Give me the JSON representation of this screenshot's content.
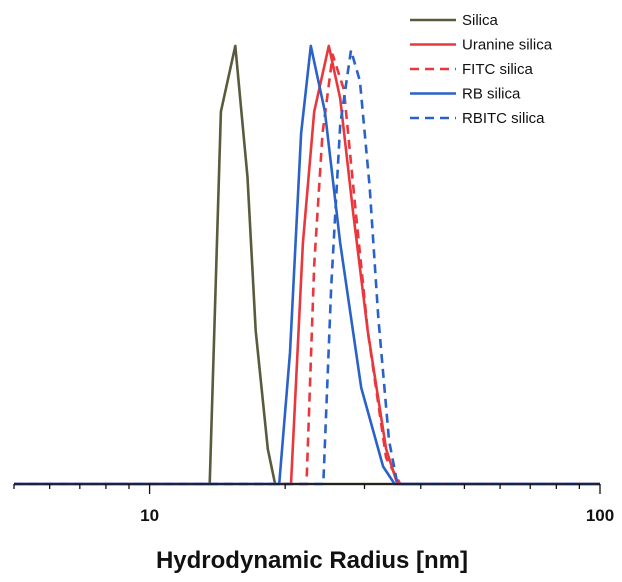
{
  "chart_data": {
    "type": "line",
    "title": "",
    "xlabel": "Hydrodynamic Radius [nm]",
    "ylabel": "",
    "x_scale": "log",
    "xlim": [
      5,
      100
    ],
    "ylim": [
      0,
      1.05
    ],
    "x_ticks": [
      {
        "value": 10,
        "label": "10"
      },
      {
        "value": 100,
        "label": "100"
      }
    ],
    "legend_position": "top-right",
    "grid": false,
    "series": [
      {
        "name": "Silica",
        "color": "#5a5a3c",
        "dash": "solid",
        "points": [
          [
            5,
            0
          ],
          [
            13.6,
            0
          ],
          [
            14.4,
            0.85
          ],
          [
            15.5,
            1.0
          ],
          [
            16.5,
            0.7
          ],
          [
            17.2,
            0.35
          ],
          [
            18.3,
            0.08
          ],
          [
            19.0,
            0
          ],
          [
            100,
            0
          ]
        ]
      },
      {
        "name": "Uranine silica",
        "color": "#e8383d",
        "dash": "solid",
        "points": [
          [
            5,
            0
          ],
          [
            20.6,
            0
          ],
          [
            21.9,
            0.55
          ],
          [
            23.2,
            0.85
          ],
          [
            25.0,
            1.0
          ],
          [
            26.5,
            0.88
          ],
          [
            28.3,
            0.62
          ],
          [
            30.5,
            0.35
          ],
          [
            33.5,
            0.08
          ],
          [
            35.5,
            0
          ],
          [
            100,
            0
          ]
        ]
      },
      {
        "name": "FITC silica",
        "color": "#e8383d",
        "dash": "dashed",
        "points": [
          [
            5,
            0
          ],
          [
            22.3,
            0
          ],
          [
            23.2,
            0.5
          ],
          [
            24.2,
            0.8
          ],
          [
            25.5,
            0.98
          ],
          [
            27.0,
            0.9
          ],
          [
            28.5,
            0.65
          ],
          [
            30.5,
            0.35
          ],
          [
            33.5,
            0.06
          ],
          [
            36.0,
            0
          ],
          [
            100,
            0
          ]
        ]
      },
      {
        "name": "RB silica",
        "color": "#2a62c9",
        "dash": "solid",
        "points": [
          [
            5,
            0
          ],
          [
            19.4,
            0
          ],
          [
            20.5,
            0.3
          ],
          [
            21.7,
            0.8
          ],
          [
            22.8,
            1.0
          ],
          [
            24.5,
            0.85
          ],
          [
            26.5,
            0.55
          ],
          [
            29.5,
            0.22
          ],
          [
            33.0,
            0.04
          ],
          [
            35.0,
            0
          ],
          [
            100,
            0
          ]
        ]
      },
      {
        "name": "RBITC silica",
        "color": "#2a62c9",
        "dash": "dashed",
        "points": [
          [
            5,
            0
          ],
          [
            24.3,
            0
          ],
          [
            25.3,
            0.45
          ],
          [
            26.5,
            0.82
          ],
          [
            28.0,
            0.99
          ],
          [
            29.3,
            0.92
          ],
          [
            30.8,
            0.68
          ],
          [
            32.2,
            0.38
          ],
          [
            34.0,
            0.1
          ],
          [
            35.5,
            0
          ],
          [
            100,
            0
          ]
        ]
      }
    ]
  }
}
